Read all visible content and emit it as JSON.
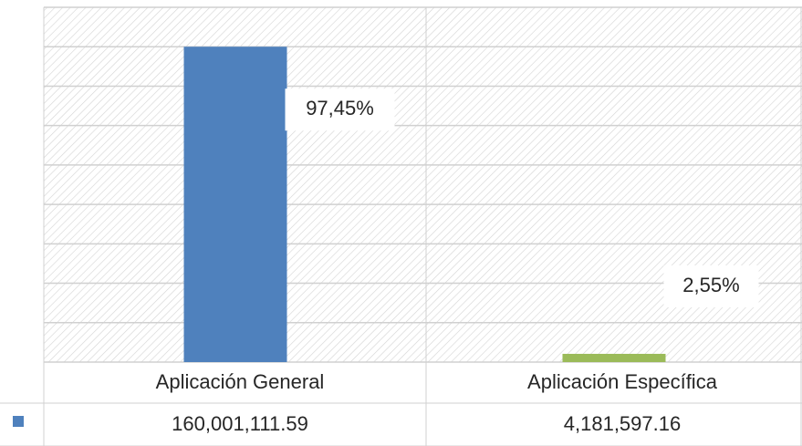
{
  "chart_data": {
    "type": "bar",
    "categories": [
      "Aplicación General",
      "Aplicación Específica"
    ],
    "series": [
      {
        "colors": [
          "#4f81bd",
          "#9bbb59"
        ],
        "legend_color": "#4f81bd",
        "values": [
          160001111.59,
          4181597.16
        ],
        "value_labels": [
          "160,001,111.59",
          "4,181,597.16"
        ]
      }
    ],
    "percentages": [
      97.45,
      2.55
    ],
    "percentage_labels": [
      "97,45%",
      "2,55%"
    ],
    "ylim": [
      0,
      180000000
    ],
    "yticks": [
      0,
      20000000,
      40000000,
      60000000,
      80000000,
      100000000,
      120000000,
      140000000,
      160000000,
      180000000
    ],
    "grid": true
  }
}
